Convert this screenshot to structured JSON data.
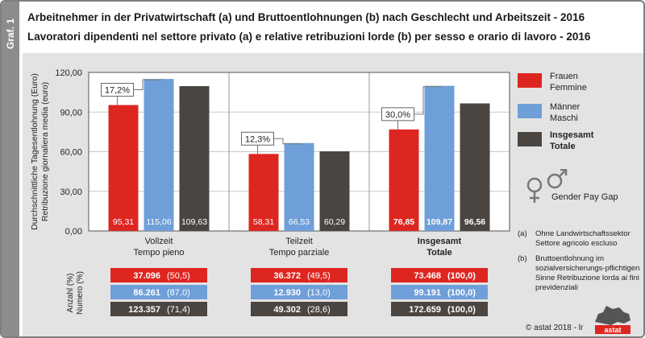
{
  "side_tab": "Graf. 1",
  "title_de": "Arbeitnehmer in der Privatwirtschaft (a) und Bruttoentlohnungen (b) nach Geschlecht und Arbeitszeit - 2016",
  "title_it": "Lavoratori dipendenti nel settore privato (a) e relative retribuzioni lorde (b) per sesso e orario di lavoro - 2016",
  "colors": {
    "frauen": "#de2621",
    "maenner": "#6f9fd8",
    "insgesamt": "#4a4540"
  },
  "legend": [
    {
      "key": "frauen",
      "line1": "Frauen",
      "line2": "Femmine",
      "bold": false
    },
    {
      "key": "maenner",
      "line1": "Männer",
      "line2": "Maschi",
      "bold": false
    },
    {
      "key": "insgesamt",
      "line1": "Insgesamt",
      "line2": "Totale",
      "bold": true
    }
  ],
  "gender_pay_gap_label": "Gender Pay Gap",
  "notes": [
    {
      "key": "(a)",
      "text": "Ohne Landwirtschaftssektor Settore agricolo escluso"
    },
    {
      "key": "(b)",
      "text": "Bruttoentlohnung im sozialversicherungs-pflichtigen Sinne Retribuzione lorda ai fini previdenziali"
    }
  ],
  "table_axis_label_1": "Anzahl (%)",
  "table_axis_label_2": "Numero (%)",
  "table": [
    {
      "rows": [
        {
          "count": "37.096",
          "pct": "(50,5)"
        },
        {
          "count": "86.261",
          "pct": "(87,0)"
        },
        {
          "count": "123.357",
          "pct": "(71,4)"
        }
      ]
    },
    {
      "rows": [
        {
          "count": "36.372",
          "pct": "(49,5)"
        },
        {
          "count": "12.930",
          "pct": "(13,0)"
        },
        {
          "count": "49.302",
          "pct": "(28,6)"
        }
      ]
    },
    {
      "rows": [
        {
          "count": "73.468",
          "pct": "(100,0)"
        },
        {
          "count": "99.191",
          "pct": "(100,0)"
        },
        {
          "count": "172.659",
          "pct": "(100,0)"
        }
      ]
    }
  ],
  "footer": "© astat 2018 - lr",
  "logo_text": "astat",
  "chart_data": {
    "type": "bar",
    "ylabel_1": "Durchschnittliche Tagesentlohnung (Euro)",
    "ylabel_2": "Retribuzione giornaliera media (euro)",
    "ylim": [
      0,
      120
    ],
    "yticks": [
      0,
      30,
      60,
      90,
      120
    ],
    "ytick_labels": [
      "0,00",
      "30,00",
      "60,00",
      "90,00",
      "120,00"
    ],
    "grid": true,
    "legend_position": "right",
    "categories": [
      {
        "line1": "Vollzeit",
        "line2": "Tempo pieno",
        "bold": false
      },
      {
        "line1": "Teilzeit",
        "line2": "Tempo parziale",
        "bold": false
      },
      {
        "line1": "Insgesamt",
        "line2": "Totale",
        "bold": true
      }
    ],
    "series": [
      {
        "key": "frauen",
        "values": [
          95.31,
          58.31,
          76.85
        ],
        "labels": [
          "95,31",
          "58,31",
          "76,85"
        ]
      },
      {
        "key": "maenner",
        "values": [
          115.06,
          66.53,
          109.87
        ],
        "labels": [
          "115,06",
          "66,53",
          "109,87"
        ]
      },
      {
        "key": "insgesamt",
        "values": [
          109.63,
          60.29,
          96.56
        ],
        "labels": [
          "109,63",
          "60,29",
          "96,56"
        ]
      }
    ],
    "gaps": [
      "17,2%",
      "12,3%",
      "30,0%"
    ]
  }
}
